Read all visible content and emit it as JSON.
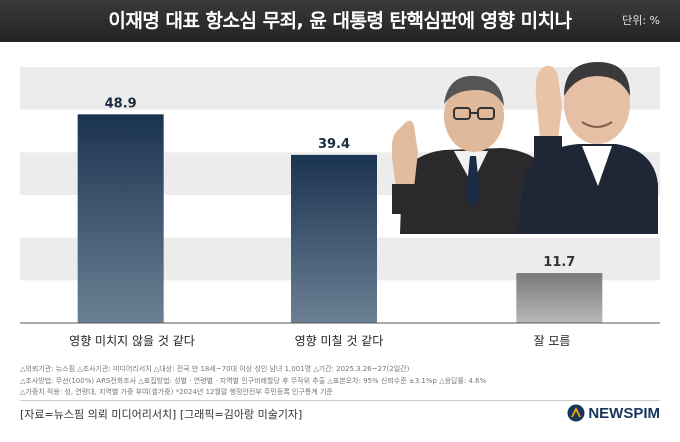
{
  "header": {
    "title": "이재명 대표 항소심 무죄, 윤 대통령 탄핵심판에 영향 미치나",
    "unit": "단위: %"
  },
  "chart_data": {
    "type": "bar",
    "categories": [
      "영향 미치지 않을 것 같다",
      "영향 미칠 것 같다",
      "잘 모름"
    ],
    "values": [
      48.9,
      39.4,
      11.7
    ],
    "value_labels": [
      "48.9",
      "39.4",
      "11.7"
    ],
    "ylim": [
      0,
      60
    ],
    "grid": "alternating horizontal bands",
    "colors": {
      "bar_top": "#1a3350",
      "bar_bottom": "#6c8094",
      "bar_muted_top": "#7a7a7a",
      "bar_muted_bottom": "#b8b8b8",
      "band": "#ececec"
    }
  },
  "footnotes": [
    "△의뢰기관: 뉴스핌  △조사기관: 미디어리서치  △대상: 전국 만 18세~70대 이상 성인 남녀 1,001명  △기간: 2025.3.26~27(2일간)",
    "△조사방법: 무선(100%) ARS전화조사  △표집방법: 성별 · 연령별 · 지역별 인구비례할당 후 무작위 추출  △표본오차: 95% 신뢰수준 ±3.1%p  △응답률: 4.6%",
    "△가중치 적용: 성, 연령대, 지역별 가중 부여(셀가중) *2024년 12월말 행정안전부 주민등록 인구통계 기준"
  ],
  "footer": {
    "credit": "[자료=뉴스핌 의뢰 미디어리서치] [그래픽=김아랑 미술기자]",
    "logo": "NEWSPIM"
  }
}
